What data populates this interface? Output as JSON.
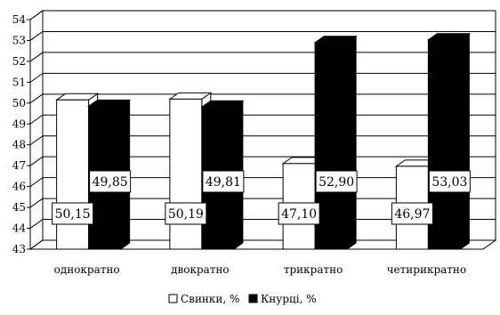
{
  "chart_data": {
    "type": "bar",
    "title": "",
    "xlabel": "",
    "ylabel": "",
    "ylim": [
      43,
      54
    ],
    "y_ticks": [
      "43",
      "44",
      "45",
      "46",
      "47",
      "48",
      "49",
      "50",
      "51",
      "52",
      "53",
      "54"
    ],
    "grid": true,
    "legend_placement": "bottom",
    "categories": [
      "однократно",
      "двократно",
      "трикратно",
      "четирикратно"
    ],
    "series": [
      {
        "name": "Свинки, %",
        "color": "#ffffff",
        "values": [
          50.15,
          50.19,
          47.1,
          46.97
        ],
        "value_labels": [
          "50,15",
          "50,19",
          "47,10",
          "46,97"
        ]
      },
      {
        "name": "Кнурці, %",
        "color": "#000000",
        "values": [
          49.85,
          49.81,
          52.9,
          53.03
        ],
        "value_labels": [
          "49,85",
          "49,81",
          "52,90",
          "53,03"
        ]
      }
    ]
  }
}
